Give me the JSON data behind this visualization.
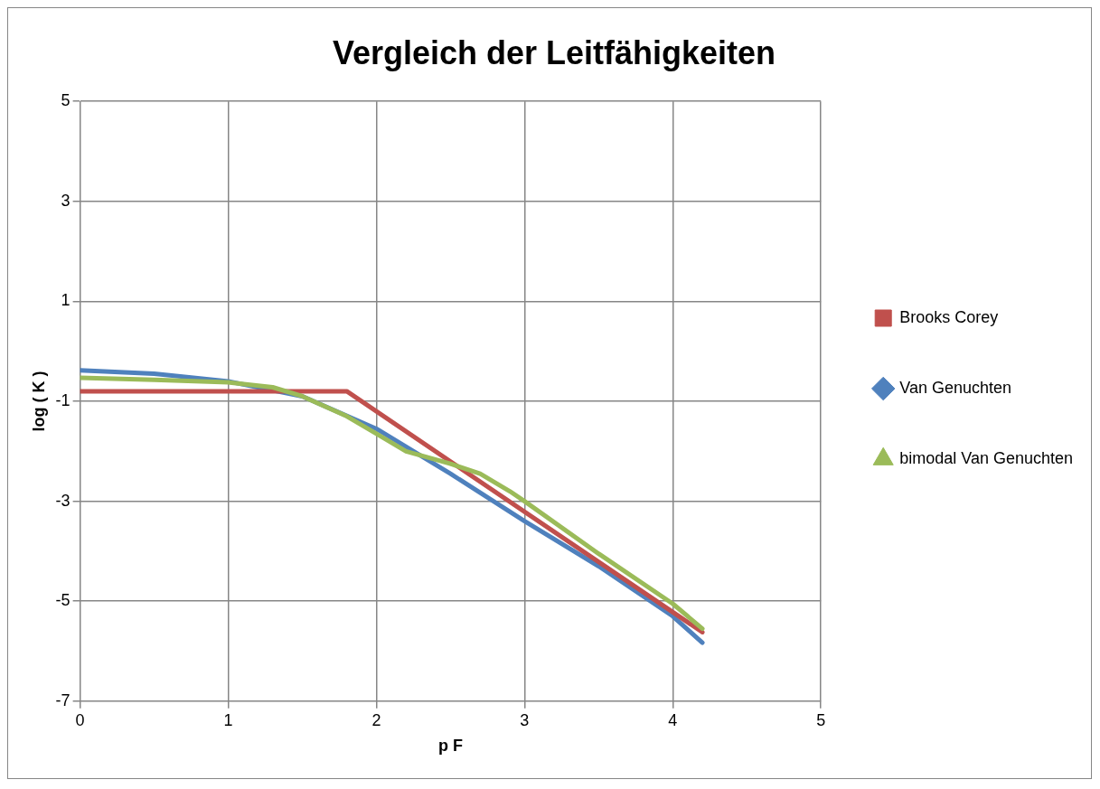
{
  "chart_data": {
    "type": "line",
    "title": "Vergleich der Leitfähigkeiten",
    "xlabel": "p F",
    "ylabel": "log ( K )",
    "xlim": [
      0,
      5
    ],
    "xticks": [
      0,
      1,
      2,
      3,
      4,
      5
    ],
    "ylim": [
      -7,
      5
    ],
    "yticks": [
      -7,
      -5,
      -3,
      -1,
      1,
      3,
      5
    ],
    "grid": true,
    "legend": "right",
    "marker": "none",
    "line_style": "solid",
    "series": [
      {
        "name": "Brooks Corey",
        "color": "#c0504d",
        "x": [
          0,
          1.8,
          4.2
        ],
        "values": [
          -0.8,
          -0.8,
          -5.62
        ]
      },
      {
        "name": "Van Genuchten",
        "color": "#4f81bd",
        "x": [
          0,
          0.5,
          1,
          1.5,
          2,
          2.5,
          3,
          3.5,
          4,
          4.2
        ],
        "values": [
          -0.38,
          -0.45,
          -0.6,
          -0.9,
          -1.55,
          -2.45,
          -3.4,
          -4.3,
          -5.3,
          -5.83
        ]
      },
      {
        "name": "bimodal Van Genuchten",
        "color": "#9bbb59",
        "x": [
          0,
          0.5,
          1,
          1.3,
          1.5,
          1.8,
          2,
          2.2,
          2.5,
          2.7,
          2.9,
          3,
          3.5,
          4,
          4.2
        ],
        "values": [
          -0.53,
          -0.57,
          -0.62,
          -0.72,
          -0.9,
          -1.3,
          -1.65,
          -2,
          -2.25,
          -2.45,
          -2.8,
          -3,
          -4.05,
          -5.05,
          -5.55
        ]
      }
    ]
  }
}
